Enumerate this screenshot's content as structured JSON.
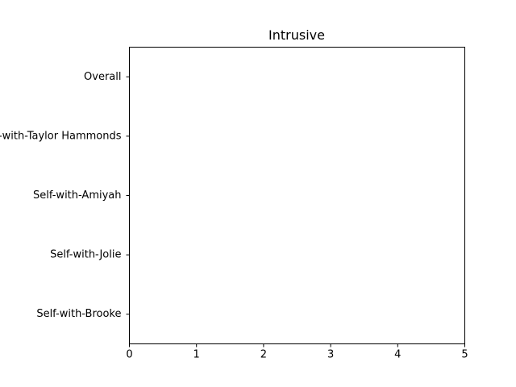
{
  "chart_data": {
    "type": "bar",
    "orientation": "horizontal",
    "title": "Intrusive",
    "xlabel": "",
    "ylabel": "",
    "categories": [
      "Overall",
      "Self-with-Taylor Hammonds",
      "Self-with-Amiyah",
      "Self-with-Jolie",
      "Self-with-Brooke"
    ],
    "values": [
      null,
      null,
      null,
      null,
      null
    ],
    "xlim": [
      0,
      5
    ],
    "xticks": [
      0,
      1,
      2,
      3,
      4,
      5
    ],
    "grid": false,
    "legend": "none",
    "colors": {
      "frame": "#000000",
      "text": "#000000",
      "background": "#ffffff"
    }
  }
}
